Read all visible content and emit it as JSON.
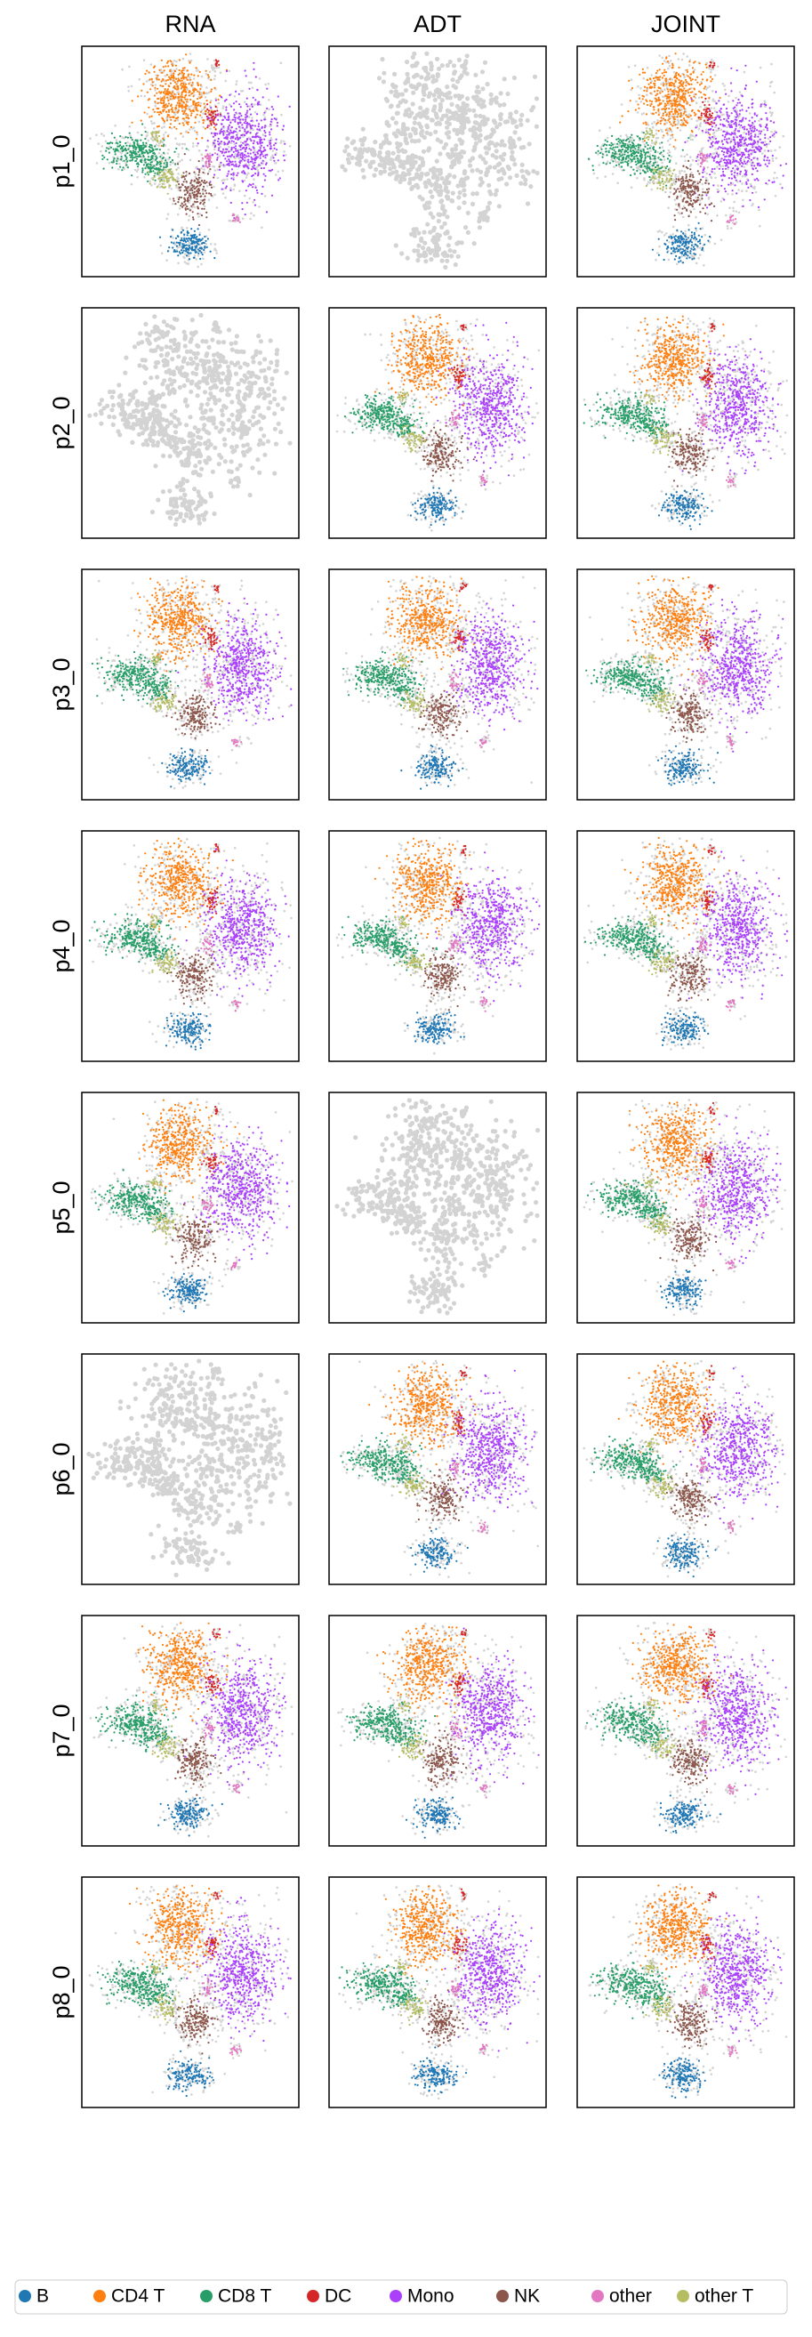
{
  "column_titles": [
    "RNA",
    "ADT",
    "JOINT"
  ],
  "rows": [
    {
      "label": "p1_0",
      "colored": [
        true,
        false,
        true
      ]
    },
    {
      "label": "p2_0",
      "colored": [
        false,
        true,
        true
      ]
    },
    {
      "label": "p3_0",
      "colored": [
        true,
        true,
        true
      ]
    },
    {
      "label": "p4_0",
      "colored": [
        true,
        true,
        true
      ]
    },
    {
      "label": "p5_0",
      "colored": [
        true,
        false,
        true
      ]
    },
    {
      "label": "p6_0",
      "colored": [
        false,
        true,
        true
      ]
    },
    {
      "label": "p7_0",
      "colored": [
        true,
        true,
        true
      ]
    },
    {
      "label": "p8_0",
      "colored": [
        true,
        true,
        true
      ]
    }
  ],
  "legend": [
    {
      "label": "B",
      "color": "#1f77b4"
    },
    {
      "label": "CD4 T",
      "color": "#ff7f0e"
    },
    {
      "label": "CD8 T",
      "color": "#279e68"
    },
    {
      "label": "DC",
      "color": "#d62728"
    },
    {
      "label": "Mono",
      "color": "#aa40fc"
    },
    {
      "label": "NK",
      "color": "#8c564b"
    },
    {
      "label": "other",
      "color": "#e377c2"
    },
    {
      "label": "other T",
      "color": "#b5bd61"
    }
  ]
}
